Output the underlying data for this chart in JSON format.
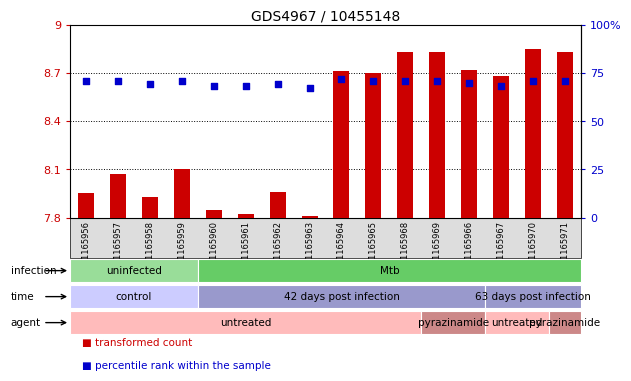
{
  "title": "GDS4967 / 10455148",
  "samples": [
    "GSM1165956",
    "GSM1165957",
    "GSM1165958",
    "GSM1165959",
    "GSM1165960",
    "GSM1165961",
    "GSM1165962",
    "GSM1165963",
    "GSM1165964",
    "GSM1165965",
    "GSM1165968",
    "GSM1165969",
    "GSM1165966",
    "GSM1165967",
    "GSM1165970",
    "GSM1165971"
  ],
  "transformed_count": [
    7.95,
    8.07,
    7.93,
    8.1,
    7.85,
    7.82,
    7.96,
    7.81,
    8.71,
    8.7,
    8.83,
    8.83,
    8.72,
    8.68,
    8.85,
    8.83
  ],
  "percentile_rank": [
    71,
    71,
    69,
    71,
    68,
    68,
    69,
    67,
    72,
    71,
    71,
    71,
    70,
    68,
    71,
    71
  ],
  "ylim_left": [
    7.8,
    9.0
  ],
  "ylim_right": [
    0,
    100
  ],
  "yticks_left": [
    7.8,
    8.1,
    8.4,
    8.7,
    9.0
  ],
  "yticks_right": [
    0,
    25,
    50,
    75,
    100
  ],
  "ytick_labels_left": [
    "7.8",
    "8.1",
    "8.4",
    "8.7",
    "9"
  ],
  "ytick_labels_right": [
    "0",
    "25",
    "50",
    "75",
    "100%"
  ],
  "bar_color": "#cc0000",
  "dot_color": "#0000cc",
  "bar_bottom": 7.8,
  "infection_groups": [
    {
      "label": "uninfected",
      "start": 0,
      "end": 4,
      "color": "#99dd99"
    },
    {
      "label": "Mtb",
      "start": 4,
      "end": 16,
      "color": "#66cc66"
    }
  ],
  "time_groups": [
    {
      "label": "control",
      "start": 0,
      "end": 4,
      "color": "#ccccff"
    },
    {
      "label": "42 days post infection",
      "start": 4,
      "end": 13,
      "color": "#9999cc"
    },
    {
      "label": "63 days post infection",
      "start": 13,
      "end": 16,
      "color": "#9999cc"
    }
  ],
  "agent_groups": [
    {
      "label": "untreated",
      "start": 0,
      "end": 11,
      "color": "#ffbbbb"
    },
    {
      "label": "pyrazinamide",
      "start": 11,
      "end": 13,
      "color": "#cc8888"
    },
    {
      "label": "untreated",
      "start": 13,
      "end": 15,
      "color": "#ffbbbb"
    },
    {
      "label": "pyrazinamide",
      "start": 15,
      "end": 16,
      "color": "#cc8888"
    }
  ],
  "row_labels": [
    "infection",
    "time",
    "agent"
  ],
  "background_color": "#ffffff",
  "tick_color_left": "#cc0000",
  "tick_color_right": "#0000cc",
  "legend": [
    {
      "label": "transformed count",
      "color": "#cc0000"
    },
    {
      "label": "percentile rank within the sample",
      "color": "#0000cc"
    }
  ]
}
